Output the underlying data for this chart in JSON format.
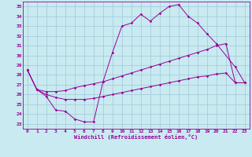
{
  "xlabel": "Windchill (Refroidissement éolien,°C)",
  "xlim": [
    -0.5,
    23.5
  ],
  "ylim": [
    22.5,
    35.5
  ],
  "xticks": [
    0,
    1,
    2,
    3,
    4,
    5,
    6,
    7,
    8,
    9,
    10,
    11,
    12,
    13,
    14,
    15,
    16,
    17,
    18,
    19,
    20,
    21,
    22,
    23
  ],
  "yticks": [
    23,
    24,
    25,
    26,
    27,
    28,
    29,
    30,
    31,
    32,
    33,
    34,
    35
  ],
  "bg_color": "#c8eaf0",
  "grid_color": "#a0c8d8",
  "line_color": "#990099",
  "line1_x": [
    0,
    1,
    2,
    3,
    4,
    5,
    6,
    7,
    8,
    9,
    10,
    11,
    12,
    13,
    14,
    15,
    16,
    17,
    18,
    19,
    20,
    22,
    23
  ],
  "line1_y": [
    28.5,
    26.5,
    25.8,
    24.4,
    24.3,
    23.5,
    23.2,
    23.2,
    27.3,
    30.3,
    33.0,
    33.3,
    34.2,
    33.5,
    34.3,
    35.0,
    35.2,
    34.0,
    33.3,
    32.2,
    31.2,
    28.8,
    27.2
  ],
  "line2_x": [
    0,
    1,
    2,
    3,
    4,
    5,
    6,
    7,
    8,
    9,
    10,
    11,
    12,
    13,
    14,
    15,
    16,
    17,
    18,
    19,
    20,
    21,
    22,
    23
  ],
  "line2_y": [
    28.5,
    26.5,
    26.3,
    26.3,
    26.4,
    26.7,
    26.9,
    27.1,
    27.3,
    27.6,
    27.9,
    28.2,
    28.5,
    28.8,
    29.1,
    29.4,
    29.7,
    30.0,
    30.3,
    30.6,
    31.0,
    31.2,
    27.2,
    27.2
  ],
  "line3_x": [
    0,
    1,
    2,
    3,
    4,
    5,
    6,
    7,
    8,
    9,
    10,
    11,
    12,
    13,
    14,
    15,
    16,
    17,
    18,
    19,
    20,
    21,
    22,
    23
  ],
  "line3_y": [
    28.5,
    26.5,
    26.0,
    25.7,
    25.5,
    25.5,
    25.5,
    25.6,
    25.8,
    26.0,
    26.2,
    26.4,
    26.6,
    26.8,
    27.0,
    27.2,
    27.4,
    27.6,
    27.8,
    27.9,
    28.1,
    28.2,
    27.2,
    27.2
  ]
}
